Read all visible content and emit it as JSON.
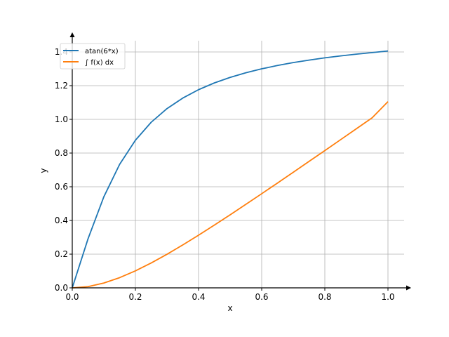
{
  "chart_data": {
    "type": "line",
    "xlabel": "x",
    "ylabel": "y",
    "xlim": [
      0,
      1.05
    ],
    "ylim": [
      0,
      1.45
    ],
    "x_ticks": [
      0.0,
      0.2,
      0.4,
      0.6,
      0.8,
      1.0
    ],
    "x_tick_labels": [
      "0.0",
      "0.2",
      "0.4",
      "0.6",
      "0.8",
      "1.0"
    ],
    "y_ticks": [
      0.0,
      0.2,
      0.4,
      0.6,
      0.8,
      1.0,
      1.2,
      1.4
    ],
    "y_tick_labels": [
      "0.0",
      "0.2",
      "0.4",
      "0.6",
      "0.8",
      "1.0",
      "1.2",
      "1.4"
    ],
    "grid": true,
    "legend_position": "top-left",
    "x": [
      0.0,
      0.05,
      0.1,
      0.15,
      0.2,
      0.25,
      0.3,
      0.35,
      0.4,
      0.45,
      0.5,
      0.55,
      0.6,
      0.65,
      0.7,
      0.75,
      0.8,
      0.85,
      0.9,
      0.95,
      1.0
    ],
    "series": [
      {
        "name": "atan(6*x)",
        "color": "#1f77b4",
        "values": [
          0.0,
          0.2915,
          0.5404,
          0.7328,
          0.8761,
          0.9828,
          1.0637,
          1.1263,
          1.176,
          1.2161,
          1.249,
          1.2765,
          1.2998,
          1.3196,
          1.3368,
          1.3517,
          1.3649,
          1.3765,
          1.3869,
          1.3962,
          1.4056
        ]
      },
      {
        "name": "∫ f(x) dx",
        "color": "#ff7f0e",
        "values": [
          0.0,
          0.0073,
          0.0285,
          0.0605,
          0.1009,
          0.1478,
          0.1993,
          0.2547,
          0.3126,
          0.3724,
          0.4335,
          0.4957,
          0.5586,
          0.6221,
          0.6861,
          0.7503,
          0.8148,
          0.8794,
          0.9442,
          1.0092,
          1.1051
        ]
      }
    ]
  }
}
